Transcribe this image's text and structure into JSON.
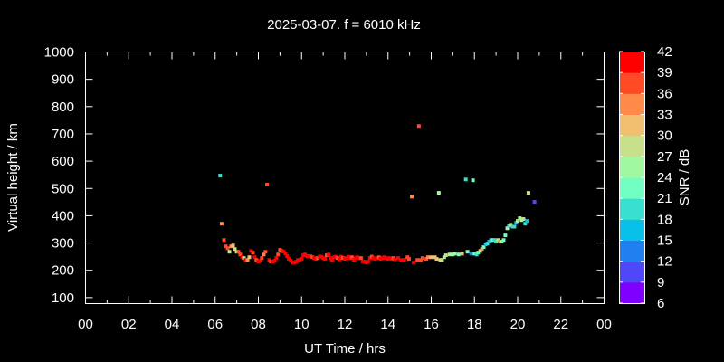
{
  "chart_data": {
    "type": "scatter",
    "title": "2025-03-07. f = 6010 kHz",
    "xlabel": "UT Time / hrs",
    "ylabel": "Virtual height / km",
    "colorbar_label": "SNR / dB",
    "xlim": [
      0,
      24
    ],
    "ylim": [
      78,
      1000
    ],
    "xticks": [
      "00",
      "02",
      "04",
      "06",
      "08",
      "10",
      "12",
      "14",
      "16",
      "18",
      "20",
      "22",
      "00"
    ],
    "yticks": [
      100,
      200,
      300,
      400,
      500,
      600,
      700,
      800,
      900,
      1000
    ],
    "colorbar_ticks": [
      6,
      9,
      12,
      15,
      18,
      21,
      24,
      27,
      30,
      33,
      36,
      39,
      42
    ],
    "colorbar_colors": [
      "#8000ff",
      "#5048f8",
      "#2080f0",
      "#08c0e8",
      "#38e0d0",
      "#70ffc0",
      "#a0f8a0",
      "#c8e08a",
      "#f0c070",
      "#ff8a4a",
      "#ff4a25",
      "#ff0000"
    ],
    "grid": false,
    "points_format": [
      "hour",
      "height_km",
      "snr_db"
    ],
    "points": [
      [
        6.23,
        547,
        20
      ],
      [
        8.4,
        514,
        37
      ],
      [
        15.43,
        729,
        37
      ],
      [
        15.1,
        470,
        33
      ],
      [
        16.35,
        484,
        25
      ],
      [
        17.6,
        533,
        20
      ],
      [
        17.93,
        530,
        23
      ],
      [
        20.5,
        484,
        28
      ],
      [
        20.78,
        451,
        10
      ],
      [
        6.3,
        371,
        33
      ],
      [
        6.41,
        311,
        36
      ],
      [
        6.49,
        288,
        36
      ],
      [
        6.58,
        281,
        36
      ],
      [
        6.66,
        268,
        29
      ],
      [
        6.74,
        288,
        35
      ],
      [
        6.83,
        291,
        32
      ],
      [
        6.91,
        278,
        29
      ],
      [
        7.0,
        268,
        29
      ],
      [
        7.08,
        268,
        36
      ],
      [
        7.16,
        258,
        36
      ],
      [
        7.25,
        248,
        39
      ],
      [
        7.33,
        245,
        29
      ],
      [
        7.41,
        238,
        39
      ],
      [
        7.5,
        238,
        33
      ],
      [
        7.58,
        248,
        32
      ],
      [
        7.66,
        271,
        40
      ],
      [
        7.75,
        265,
        37
      ],
      [
        7.83,
        248,
        40
      ],
      [
        7.91,
        238,
        37
      ],
      [
        8.0,
        232,
        39
      ],
      [
        8.08,
        235,
        39
      ],
      [
        8.16,
        245,
        37
      ],
      [
        8.25,
        258,
        33
      ],
      [
        8.33,
        268,
        37
      ],
      [
        8.5,
        238,
        40
      ],
      [
        8.58,
        232,
        36
      ],
      [
        8.66,
        232,
        40
      ],
      [
        8.75,
        235,
        40
      ],
      [
        8.83,
        245,
        39
      ],
      [
        8.91,
        258,
        37
      ],
      [
        9.0,
        275,
        37
      ],
      [
        9.08,
        271,
        36
      ],
      [
        9.16,
        268,
        40
      ],
      [
        9.25,
        261,
        40
      ],
      [
        9.33,
        252,
        40
      ],
      [
        9.41,
        242,
        40
      ],
      [
        9.5,
        235,
        40
      ],
      [
        9.58,
        228,
        40
      ],
      [
        9.66,
        228,
        40
      ],
      [
        9.75,
        232,
        40
      ],
      [
        9.83,
        238,
        40
      ],
      [
        9.91,
        238,
        40
      ],
      [
        10.0,
        242,
        40
      ],
      [
        10.08,
        255,
        40
      ],
      [
        10.16,
        258,
        40
      ],
      [
        10.25,
        252,
        40
      ],
      [
        10.33,
        252,
        40
      ],
      [
        10.41,
        252,
        40
      ],
      [
        10.5,
        248,
        38
      ],
      [
        10.58,
        245,
        40
      ],
      [
        10.66,
        242,
        40
      ],
      [
        10.75,
        245,
        38
      ],
      [
        10.83,
        250,
        40
      ],
      [
        10.91,
        250,
        40
      ],
      [
        11.0,
        245,
        40
      ],
      [
        11.08,
        242,
        40
      ],
      [
        11.16,
        255,
        38
      ],
      [
        11.25,
        258,
        40
      ],
      [
        11.33,
        245,
        40
      ],
      [
        11.41,
        238,
        40
      ],
      [
        11.5,
        248,
        40
      ],
      [
        11.58,
        250,
        40
      ],
      [
        11.66,
        245,
        38
      ],
      [
        11.75,
        240,
        40
      ],
      [
        11.83,
        250,
        40
      ],
      [
        11.91,
        245,
        38
      ],
      [
        12.0,
        242,
        40
      ],
      [
        12.08,
        245,
        40
      ],
      [
        12.16,
        250,
        40
      ],
      [
        12.25,
        245,
        40
      ],
      [
        12.33,
        248,
        38
      ],
      [
        12.41,
        238,
        40
      ],
      [
        12.5,
        245,
        40
      ],
      [
        12.58,
        248,
        40
      ],
      [
        12.66,
        245,
        40
      ],
      [
        12.75,
        245,
        38
      ],
      [
        12.83,
        232,
        40
      ],
      [
        12.91,
        232,
        40
      ],
      [
        13.0,
        228,
        40
      ],
      [
        13.08,
        232,
        40
      ],
      [
        13.16,
        245,
        40
      ],
      [
        13.25,
        250,
        38
      ],
      [
        13.33,
        245,
        40
      ],
      [
        13.41,
        242,
        40
      ],
      [
        13.5,
        245,
        40
      ],
      [
        13.58,
        248,
        38
      ],
      [
        13.66,
        242,
        40
      ],
      [
        13.75,
        245,
        40
      ],
      [
        13.83,
        248,
        40
      ],
      [
        13.91,
        245,
        40
      ],
      [
        14.0,
        242,
        40
      ],
      [
        14.08,
        245,
        40
      ],
      [
        14.16,
        242,
        40
      ],
      [
        14.25,
        245,
        38
      ],
      [
        14.33,
        240,
        40
      ],
      [
        14.47,
        245,
        40
      ],
      [
        14.6,
        238,
        40
      ],
      [
        14.75,
        238,
        40
      ],
      [
        14.9,
        248,
        37
      ],
      [
        14.97,
        242,
        36
      ],
      [
        15.19,
        228,
        39
      ],
      [
        15.36,
        238,
        36
      ],
      [
        15.52,
        238,
        36
      ],
      [
        15.6,
        245,
        36
      ],
      [
        15.77,
        242,
        36
      ],
      [
        15.85,
        248,
        35
      ],
      [
        16.0,
        248,
        32
      ],
      [
        16.17,
        248,
        30
      ],
      [
        16.25,
        242,
        30
      ],
      [
        16.42,
        238,
        28
      ],
      [
        16.5,
        238,
        27
      ],
      [
        16.6,
        248,
        26
      ],
      [
        16.68,
        255,
        28
      ],
      [
        16.85,
        258,
        26
      ],
      [
        17.0,
        258,
        25
      ],
      [
        17.1,
        261,
        24
      ],
      [
        17.27,
        258,
        22
      ],
      [
        17.43,
        261,
        32
      ],
      [
        17.68,
        268,
        21
      ],
      [
        17.85,
        261,
        14
      ],
      [
        18.0,
        261,
        22
      ],
      [
        18.1,
        258,
        19
      ],
      [
        18.17,
        265,
        21
      ],
      [
        18.27,
        271,
        24
      ],
      [
        18.35,
        278,
        35
      ],
      [
        18.43,
        285,
        23
      ],
      [
        18.52,
        295,
        16
      ],
      [
        18.6,
        298,
        18
      ],
      [
        18.68,
        305,
        17
      ],
      [
        18.77,
        311,
        18
      ],
      [
        18.85,
        311,
        21
      ],
      [
        18.93,
        311,
        20
      ],
      [
        19.0,
        305,
        20
      ],
      [
        19.1,
        311,
        29
      ],
      [
        19.18,
        305,
        35
      ],
      [
        19.26,
        305,
        25
      ],
      [
        19.35,
        311,
        21
      ],
      [
        19.43,
        328,
        23
      ],
      [
        19.52,
        354,
        24
      ],
      [
        19.6,
        364,
        18
      ],
      [
        19.68,
        367,
        29
      ],
      [
        19.77,
        360,
        20
      ],
      [
        19.85,
        360,
        19
      ],
      [
        19.93,
        374,
        17
      ],
      [
        20.0,
        381,
        27
      ],
      [
        20.1,
        391,
        25
      ],
      [
        20.18,
        384,
        26
      ],
      [
        20.27,
        388,
        28
      ],
      [
        20.35,
        371,
        18
      ],
      [
        20.43,
        381,
        17
      ]
    ]
  }
}
